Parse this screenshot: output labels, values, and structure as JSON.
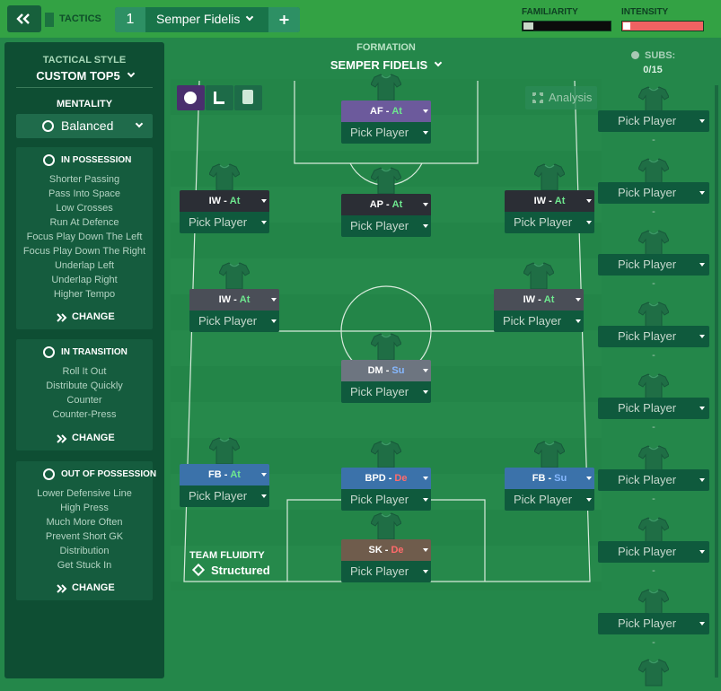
{
  "header": {
    "section": "TACTICS",
    "slot": "1",
    "tactic_name": "Semper Fidelis",
    "familiarity": "FAMILIARITY",
    "intensity": "INTENSITY"
  },
  "left_panel": {
    "style_label": "TACTICAL STYLE",
    "style": "CUSTOM TOP5",
    "mentality_label": "MENTALITY",
    "mentality": "Balanced",
    "sections": [
      {
        "title": "IN POSSESSION",
        "items": [
          "Shorter Passing",
          "Pass Into Space",
          "Low Crosses",
          "Run At Defence",
          "Focus Play Down The Left",
          "Focus Play Down The Right",
          "Underlap Left",
          "Underlap Right",
          "Higher Tempo"
        ],
        "action": "CHANGE"
      },
      {
        "title": "IN TRANSITION",
        "items": [
          "Roll It Out",
          "Distribute Quickly",
          "Counter",
          "Counter-Press"
        ],
        "action": "CHANGE"
      },
      {
        "title": "OUT OF POSSESSION",
        "items": [
          "Lower Defensive Line",
          "High Press",
          "Much More Often",
          "Prevent Short GK",
          "Distribution",
          "Get Stuck In"
        ],
        "action": "CHANGE"
      }
    ]
  },
  "formation": {
    "label": "FORMATION",
    "name": "SEMPER FIDELIS",
    "analysis": "Analysis",
    "separator": "-",
    "fluidity_label": "TEAM FLUIDITY",
    "fluidity": "Structured",
    "players": [
      {
        "role": "AF",
        "duty": "At",
        "player": "Pick Player"
      },
      {
        "role": "IW",
        "duty": "At",
        "player": "Pick Player"
      },
      {
        "role": "AP",
        "duty": "At",
        "player": "Pick Player"
      },
      {
        "role": "IW",
        "duty": "At",
        "player": "Pick Player"
      },
      {
        "role": "IW",
        "duty": "At",
        "player": "Pick Player"
      },
      {
        "role": "IW",
        "duty": "At",
        "player": "Pick Player"
      },
      {
        "role": "DM",
        "duty": "Su",
        "player": "Pick Player"
      },
      {
        "role": "FB",
        "duty": "At",
        "player": "Pick Player"
      },
      {
        "role": "BPD",
        "duty": "De",
        "player": "Pick Player"
      },
      {
        "role": "FB",
        "duty": "Su",
        "player": "Pick Player"
      },
      {
        "role": "SK",
        "duty": "De",
        "player": "Pick Player"
      }
    ]
  },
  "subs": {
    "label": "SUBS:",
    "count": "0/15",
    "slots": [
      {
        "player": "Pick Player",
        "name": "-"
      },
      {
        "player": "Pick Player",
        "name": "-"
      },
      {
        "player": "Pick Player",
        "name": "-"
      },
      {
        "player": "Pick Player",
        "name": "-"
      },
      {
        "player": "Pick Player",
        "name": "-"
      },
      {
        "player": "Pick Player",
        "name": "-"
      },
      {
        "player": "Pick Player",
        "name": "-"
      },
      {
        "player": "Pick Player",
        "name": "-"
      }
    ]
  }
}
